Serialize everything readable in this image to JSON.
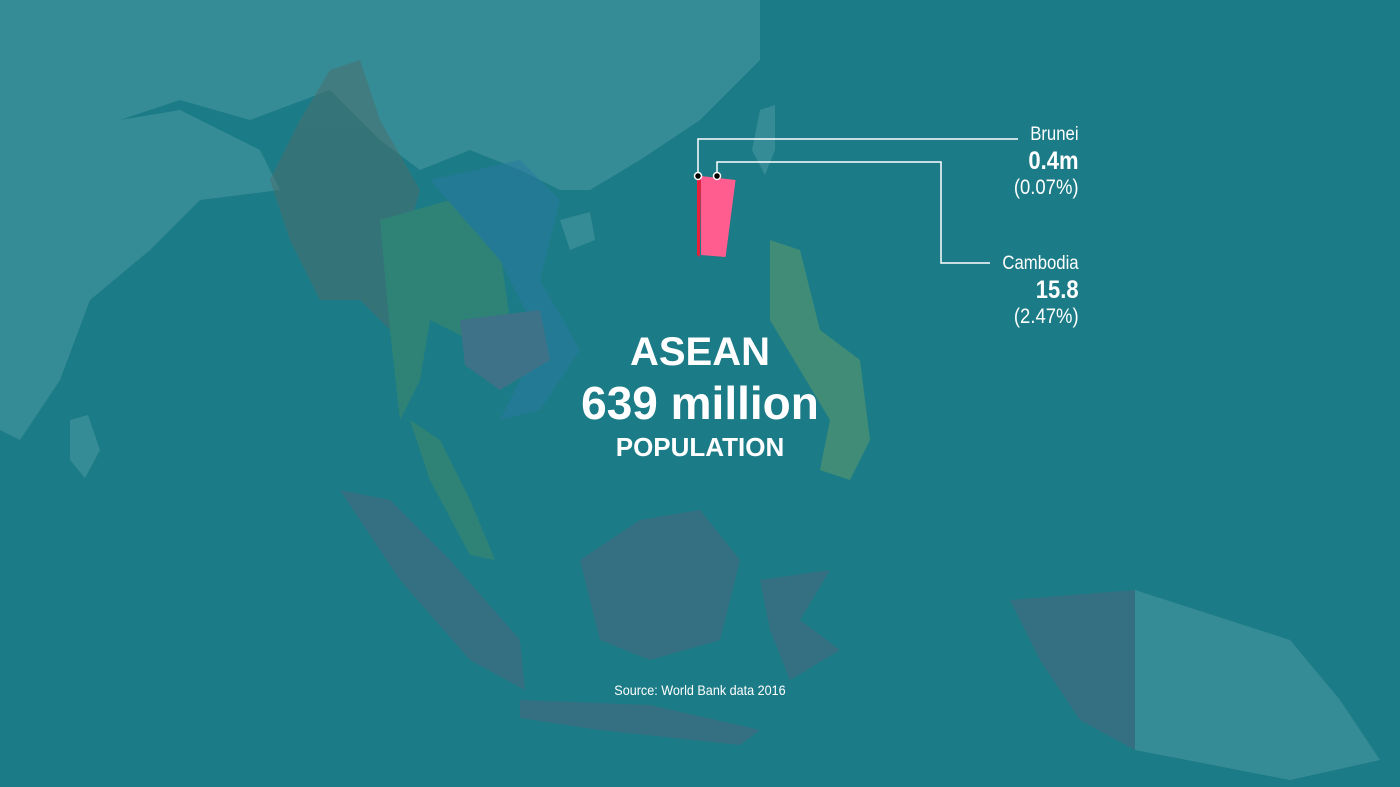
{
  "title": "ASEAN",
  "total": "639 million",
  "subtitle": "POPULATION",
  "source": "Source: World Bank data 2016",
  "colors": {
    "background": "#1b7b86",
    "land": "#3a8e98",
    "brunei": "#e8203a",
    "cambodia": "#ff5d8f"
  },
  "segments": [
    {
      "name": "Brunei",
      "value": "0.4m",
      "share": "(0.07%)",
      "share_pct": 0.07,
      "color": "#e8203a"
    },
    {
      "name": "Cambodia",
      "value": "15.8",
      "share": "(2.47%)",
      "share_pct": 2.47,
      "color": "#ff5d8f"
    }
  ]
}
